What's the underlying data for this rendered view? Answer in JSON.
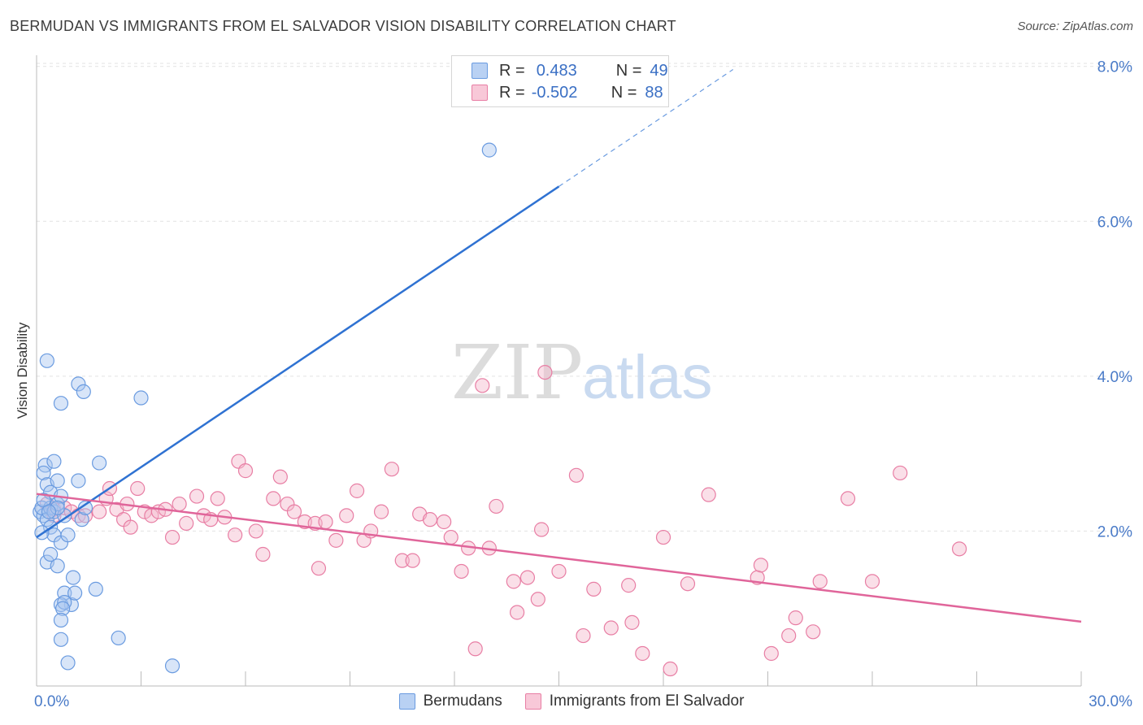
{
  "title": "BERMUDAN VS IMMIGRANTS FROM EL SALVADOR VISION DISABILITY CORRELATION CHART",
  "source": "Source: ZipAtlas.com",
  "watermark": {
    "zip": "ZIP",
    "atlas": "atlas"
  },
  "legend": {
    "rows": [
      {
        "r_label": "R =",
        "r_value": "0.483",
        "n_label": "N =",
        "n_value": "49"
      },
      {
        "r_label": "R =",
        "r_value": "-0.502",
        "n_label": "N =",
        "n_value": "88"
      }
    ]
  },
  "bottom_legend": [
    "Bermudans",
    "Immigrants from El Salvador"
  ],
  "chart_data": {
    "type": "scatter",
    "title": "BERMUDAN VS IMMIGRANTS FROM EL SALVADOR VISION DISABILITY CORRELATION CHART",
    "xlabel": "",
    "ylabel": "Vision Disability",
    "xlim": [
      0,
      30
    ],
    "ylim": [
      0,
      8.2
    ],
    "x_tick_labels": [
      "0.0%",
      "30.0%"
    ],
    "y_ticks": [
      2,
      4,
      6,
      8
    ],
    "y_tick_labels": [
      "2.0%",
      "4.0%",
      "6.0%",
      "8.0%"
    ],
    "grid": true,
    "legend_placement": "top-center",
    "series": [
      {
        "name": "Bermudans",
        "color": "#6a9be0",
        "fill": "#a9c6f0",
        "trend": {
          "x0": 0,
          "y0": 1.92,
          "x1": 15,
          "y1": 6.45,
          "dashed_to_x": 20,
          "dashed_to_y": 7.96
        },
        "points": [
          [
            0.1,
            2.25
          ],
          [
            0.2,
            2.2
          ],
          [
            0.15,
            2.3
          ],
          [
            0.3,
            2.15
          ],
          [
            0.25,
            2.85
          ],
          [
            0.2,
            2.75
          ],
          [
            0.3,
            2.6
          ],
          [
            0.4,
            2.3
          ],
          [
            0.5,
            2.25
          ],
          [
            0.6,
            2.35
          ],
          [
            0.4,
            2.5
          ],
          [
            0.7,
            2.45
          ],
          [
            0.5,
            2.9
          ],
          [
            0.6,
            2.65
          ],
          [
            0.3,
            4.2
          ],
          [
            0.7,
            3.65
          ],
          [
            0.8,
            2.2
          ],
          [
            0.4,
            2.05
          ],
          [
            0.5,
            1.95
          ],
          [
            0.3,
            1.6
          ],
          [
            0.4,
            1.7
          ],
          [
            0.6,
            1.55
          ],
          [
            0.7,
            1.85
          ],
          [
            0.9,
            1.95
          ],
          [
            0.8,
            1.2
          ],
          [
            1.0,
            1.05
          ],
          [
            0.7,
            1.05
          ],
          [
            0.8,
            1.08
          ],
          [
            0.75,
            1.0
          ],
          [
            1.1,
            1.2
          ],
          [
            1.05,
            1.4
          ],
          [
            1.7,
            1.25
          ],
          [
            1.3,
            2.15
          ],
          [
            1.4,
            2.3
          ],
          [
            1.2,
            3.9
          ],
          [
            1.35,
            3.8
          ],
          [
            1.8,
            2.88
          ],
          [
            1.2,
            2.65
          ],
          [
            0.7,
            0.85
          ],
          [
            0.7,
            0.6
          ],
          [
            0.9,
            0.3
          ],
          [
            0.6,
            2.3
          ],
          [
            2.35,
            0.62
          ],
          [
            3.0,
            3.72
          ],
          [
            3.9,
            0.26
          ],
          [
            0.2,
            2.4
          ],
          [
            0.15,
            1.98
          ],
          [
            0.35,
            2.25
          ],
          [
            13.0,
            6.92
          ]
        ]
      },
      {
        "name": "Immigrants from El Salvador",
        "color": "#e87ea4",
        "fill": "#f5b9cd",
        "trend": {
          "x0": 0,
          "y0": 2.48,
          "x1": 30,
          "y1": 0.83
        },
        "points": [
          [
            0.3,
            2.35
          ],
          [
            0.5,
            2.28
          ],
          [
            0.8,
            2.3
          ],
          [
            1.0,
            2.25
          ],
          [
            1.2,
            2.2
          ],
          [
            1.4,
            2.2
          ],
          [
            1.8,
            2.25
          ],
          [
            2.0,
            2.42
          ],
          [
            2.1,
            2.55
          ],
          [
            2.3,
            2.28
          ],
          [
            2.5,
            2.15
          ],
          [
            2.6,
            2.35
          ],
          [
            2.7,
            2.05
          ],
          [
            2.9,
            2.55
          ],
          [
            3.1,
            2.25
          ],
          [
            3.3,
            2.2
          ],
          [
            3.5,
            2.25
          ],
          [
            3.7,
            2.28
          ],
          [
            3.9,
            1.92
          ],
          [
            4.1,
            2.35
          ],
          [
            4.3,
            2.1
          ],
          [
            4.6,
            2.45
          ],
          [
            4.8,
            2.2
          ],
          [
            5.0,
            2.15
          ],
          [
            5.2,
            2.42
          ],
          [
            5.4,
            2.18
          ],
          [
            5.7,
            1.95
          ],
          [
            5.8,
            2.9
          ],
          [
            6.0,
            2.78
          ],
          [
            6.3,
            2.0
          ],
          [
            6.5,
            1.7
          ],
          [
            6.8,
            2.42
          ],
          [
            7.0,
            2.7
          ],
          [
            7.2,
            2.35
          ],
          [
            7.4,
            2.25
          ],
          [
            7.7,
            2.12
          ],
          [
            8.0,
            2.1
          ],
          [
            8.1,
            1.52
          ],
          [
            8.3,
            2.12
          ],
          [
            8.6,
            1.88
          ],
          [
            8.9,
            2.2
          ],
          [
            9.2,
            2.52
          ],
          [
            9.4,
            1.88
          ],
          [
            9.6,
            2.0
          ],
          [
            9.9,
            2.25
          ],
          [
            10.2,
            2.8
          ],
          [
            10.5,
            1.62
          ],
          [
            10.8,
            1.62
          ],
          [
            11.0,
            2.22
          ],
          [
            11.3,
            2.15
          ],
          [
            11.7,
            2.12
          ],
          [
            11.9,
            1.92
          ],
          [
            12.2,
            1.48
          ],
          [
            12.4,
            1.78
          ],
          [
            12.6,
            0.48
          ],
          [
            12.8,
            3.88
          ],
          [
            13.0,
            1.78
          ],
          [
            13.2,
            2.32
          ],
          [
            13.7,
            1.35
          ],
          [
            13.8,
            0.95
          ],
          [
            14.1,
            1.4
          ],
          [
            14.4,
            1.12
          ],
          [
            14.5,
            2.02
          ],
          [
            14.6,
            4.05
          ],
          [
            15.0,
            1.48
          ],
          [
            15.5,
            2.72
          ],
          [
            15.7,
            0.65
          ],
          [
            16.0,
            1.25
          ],
          [
            16.5,
            0.75
          ],
          [
            17.0,
            1.3
          ],
          [
            17.1,
            0.82
          ],
          [
            17.4,
            0.42
          ],
          [
            18.0,
            1.92
          ],
          [
            18.2,
            0.22
          ],
          [
            18.7,
            1.32
          ],
          [
            19.3,
            2.47
          ],
          [
            20.7,
            1.4
          ],
          [
            20.8,
            1.56
          ],
          [
            21.1,
            0.42
          ],
          [
            21.6,
            0.65
          ],
          [
            21.8,
            0.88
          ],
          [
            22.3,
            0.7
          ],
          [
            22.5,
            1.35
          ],
          [
            23.3,
            2.42
          ],
          [
            24.0,
            1.35
          ],
          [
            24.8,
            2.75
          ],
          [
            26.5,
            1.77
          ],
          [
            0.5,
            2.2
          ]
        ]
      }
    ]
  }
}
